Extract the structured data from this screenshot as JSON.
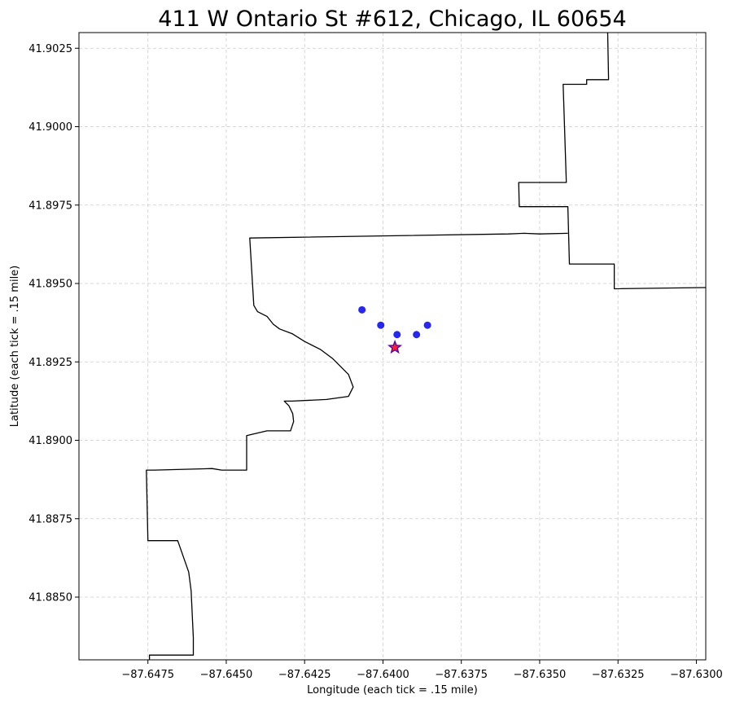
{
  "chart_data": {
    "type": "scatter",
    "title": "411 W Ontario St #612, Chicago, IL 60654",
    "xlabel": "Longitude (each tick = .15 mile)",
    "ylabel": "Latitude (each tick = .15 mile)",
    "xlim": [
      -87.6497,
      -87.6297
    ],
    "ylim": [
      41.883,
      41.903
    ],
    "xticks": [
      -87.6475,
      -87.645,
      -87.6425,
      -87.64,
      -87.6375,
      -87.635,
      -87.6325,
      -87.63
    ],
    "xtick_labels": [
      "−87.6475",
      "−87.6450",
      "−87.6425",
      "−87.6400",
      "−87.6375",
      "−87.6350",
      "−87.6325",
      "−87.6300"
    ],
    "yticks": [
      41.885,
      41.8875,
      41.89,
      41.8925,
      41.895,
      41.8975,
      41.9,
      41.9025
    ],
    "ytick_labels": [
      "41.8850",
      "41.8875",
      "41.8900",
      "41.8925",
      "41.8950",
      "41.8975",
      "41.9000",
      "41.9025"
    ],
    "grid": true,
    "colors": {
      "points": "#1010ee",
      "target_fill": "#ff2222",
      "target_edge": "#5a00b0",
      "boundary": "#000000",
      "grid": "#cccccc"
    },
    "points": [
      {
        "x": -87.64067,
        "y": 41.89416
      },
      {
        "x": -87.64007,
        "y": 41.89367
      },
      {
        "x": -87.63955,
        "y": 41.89337
      },
      {
        "x": -87.63893,
        "y": 41.89337
      },
      {
        "x": -87.63858,
        "y": 41.89367
      }
    ],
    "target": {
      "x": -87.63962,
      "y": 41.89296,
      "marker": "star"
    },
    "boundary": [
      [
        -87.63283,
        41.903
      ],
      [
        -87.6328,
        41.9015
      ],
      [
        -87.6335,
        41.9015
      ],
      [
        -87.6335,
        41.90135
      ],
      [
        -87.63425,
        41.90135
      ],
      [
        -87.63415,
        41.89822
      ],
      [
        -87.63567,
        41.89822
      ],
      [
        -87.63565,
        41.89745
      ],
      [
        -87.6341,
        41.89745
      ],
      [
        -87.63405,
        41.89562
      ],
      [
        -87.63262,
        41.89562
      ],
      [
        -87.63262,
        41.89483
      ],
      [
        -87.6297,
        41.89487
      ],
      null,
      [
        -87.6341,
        41.8966
      ],
      [
        -87.635,
        41.89658
      ],
      [
        -87.6355,
        41.8966
      ],
      [
        -87.636,
        41.89658
      ],
      [
        -87.64425,
        41.89645
      ],
      [
        -87.64412,
        41.8943
      ],
      [
        -87.644,
        41.8941
      ],
      [
        -87.6437,
        41.89395
      ],
      [
        -87.6435,
        41.8937
      ],
      [
        -87.6433,
        41.89355
      ],
      [
        -87.6429,
        41.8934
      ],
      [
        -87.6425,
        41.89315
      ],
      [
        -87.642,
        41.8929
      ],
      [
        -87.6416,
        41.8926
      ],
      [
        -87.6414,
        41.8924
      ],
      [
        -87.6411,
        41.8921
      ],
      [
        -87.64095,
        41.8917
      ],
      [
        -87.6411,
        41.8914
      ],
      [
        -87.6418,
        41.8913
      ],
      [
        -87.6429,
        41.89125
      ],
      [
        -87.64315,
        41.89125
      ],
      [
        -87.643,
        41.8911
      ],
      [
        -87.64288,
        41.89085
      ],
      [
        -87.64285,
        41.8906
      ],
      [
        -87.64295,
        41.8903
      ],
      [
        -87.6437,
        41.8903
      ],
      [
        -87.64435,
        41.89015
      ],
      [
        -87.64435,
        41.88905
      ],
      [
        -87.64515,
        41.88905
      ],
      [
        -87.64545,
        41.8891
      ],
      [
        -87.6473,
        41.88905
      ],
      [
        -87.64755,
        41.88905
      ],
      [
        -87.6475,
        41.8868
      ],
      [
        -87.64655,
        41.8868
      ],
      [
        -87.6462,
        41.8858
      ],
      [
        -87.64612,
        41.8852
      ],
      [
        -87.64605,
        41.8837
      ],
      [
        -87.64605,
        41.88315
      ],
      [
        -87.64745,
        41.88315
      ],
      [
        -87.64745,
        41.883
      ]
    ]
  }
}
